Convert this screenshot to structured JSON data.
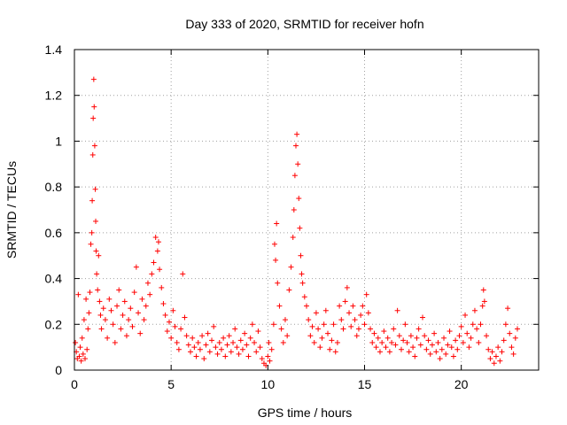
{
  "chart_data": {
    "type": "scatter",
    "title": "Day 333 of 2020, SRMTID for receiver hofn",
    "xlabel": "GPS time / hours",
    "ylabel": "SRMTID / TECUs",
    "xlim": [
      0,
      24
    ],
    "ylim": [
      0,
      1.4
    ],
    "x_ticks": [
      0,
      5,
      10,
      15,
      20
    ],
    "x_tick_labels": [
      "0",
      "5",
      "10",
      "15",
      "20"
    ],
    "y_ticks": [
      0,
      0.2,
      0.4,
      0.6,
      0.8,
      1.0,
      1.2,
      1.4
    ],
    "y_tick_labels": [
      "0",
      "0.2",
      "0.4",
      "0.6",
      "0.8",
      "1",
      "1.2",
      "1.4"
    ],
    "grid": true,
    "marker": "+",
    "color": "#ff0000",
    "series": [
      {
        "name": "SRMTID",
        "points": [
          [
            0.05,
            0.12
          ],
          [
            0.1,
            0.08
          ],
          [
            0.15,
            0.05
          ],
          [
            0.2,
            0.33
          ],
          [
            0.25,
            0.06
          ],
          [
            0.3,
            0.1
          ],
          [
            0.35,
            0.04
          ],
          [
            0.4,
            0.14
          ],
          [
            0.45,
            0.07
          ],
          [
            0.5,
            0.22
          ],
          [
            0.55,
            0.05
          ],
          [
            0.6,
            0.31
          ],
          [
            0.65,
            0.09
          ],
          [
            0.7,
            0.18
          ],
          [
            0.75,
            0.25
          ],
          [
            0.8,
            0.34
          ],
          [
            0.85,
            0.55
          ],
          [
            0.9,
            0.6
          ],
          [
            0.92,
            0.74
          ],
          [
            0.95,
            0.94
          ],
          [
            0.97,
            1.1
          ],
          [
            1.0,
            1.27
          ],
          [
            1.02,
            1.15
          ],
          [
            1.05,
            0.98
          ],
          [
            1.08,
            0.79
          ],
          [
            1.1,
            0.65
          ],
          [
            1.12,
            0.52
          ],
          [
            1.15,
            0.42
          ],
          [
            1.2,
            0.35
          ],
          [
            1.25,
            0.5
          ],
          [
            1.3,
            0.3
          ],
          [
            1.35,
            0.24
          ],
          [
            1.4,
            0.18
          ],
          [
            1.5,
            0.27
          ],
          [
            1.6,
            0.22
          ],
          [
            1.7,
            0.14
          ],
          [
            1.8,
            0.31
          ],
          [
            1.9,
            0.26
          ],
          [
            2.0,
            0.2
          ],
          [
            2.1,
            0.12
          ],
          [
            2.2,
            0.28
          ],
          [
            2.3,
            0.35
          ],
          [
            2.4,
            0.18
          ],
          [
            2.5,
            0.24
          ],
          [
            2.6,
            0.3
          ],
          [
            2.7,
            0.15
          ],
          [
            2.8,
            0.22
          ],
          [
            2.9,
            0.27
          ],
          [
            3.0,
            0.19
          ],
          [
            3.1,
            0.34
          ],
          [
            3.2,
            0.45
          ],
          [
            3.3,
            0.25
          ],
          [
            3.4,
            0.16
          ],
          [
            3.5,
            0.31
          ],
          [
            3.6,
            0.22
          ],
          [
            3.7,
            0.28
          ],
          [
            3.8,
            0.38
          ],
          [
            3.9,
            0.33
          ],
          [
            4.0,
            0.42
          ],
          [
            4.1,
            0.47
          ],
          [
            4.2,
            0.58
          ],
          [
            4.3,
            0.52
          ],
          [
            4.35,
            0.56
          ],
          [
            4.4,
            0.44
          ],
          [
            4.5,
            0.36
          ],
          [
            4.6,
            0.29
          ],
          [
            4.7,
            0.24
          ],
          [
            4.8,
            0.17
          ],
          [
            4.9,
            0.21
          ],
          [
            5.0,
            0.14
          ],
          [
            5.1,
            0.26
          ],
          [
            5.2,
            0.19
          ],
          [
            5.3,
            0.12
          ],
          [
            5.4,
            0.09
          ],
          [
            5.5,
            0.18
          ],
          [
            5.6,
            0.42
          ],
          [
            5.7,
            0.23
          ],
          [
            5.8,
            0.15
          ],
          [
            5.9,
            0.11
          ],
          [
            6.0,
            0.08
          ],
          [
            6.1,
            0.14
          ],
          [
            6.2,
            0.1
          ],
          [
            6.3,
            0.06
          ],
          [
            6.4,
            0.12
          ],
          [
            6.5,
            0.09
          ],
          [
            6.6,
            0.15
          ],
          [
            6.7,
            0.05
          ],
          [
            6.8,
            0.11
          ],
          [
            6.9,
            0.16
          ],
          [
            7.0,
            0.08
          ],
          [
            7.1,
            0.13
          ],
          [
            7.2,
            0.19
          ],
          [
            7.3,
            0.1
          ],
          [
            7.4,
            0.07
          ],
          [
            7.5,
            0.12
          ],
          [
            7.6,
            0.09
          ],
          [
            7.7,
            0.14
          ],
          [
            7.8,
            0.06
          ],
          [
            7.9,
            0.11
          ],
          [
            8.0,
            0.15
          ],
          [
            8.1,
            0.08
          ],
          [
            8.2,
            0.12
          ],
          [
            8.3,
            0.18
          ],
          [
            8.4,
            0.1
          ],
          [
            8.5,
            0.07
          ],
          [
            8.6,
            0.13
          ],
          [
            8.7,
            0.09
          ],
          [
            8.8,
            0.16
          ],
          [
            8.9,
            0.11
          ],
          [
            9.0,
            0.06
          ],
          [
            9.1,
            0.14
          ],
          [
            9.2,
            0.2
          ],
          [
            9.3,
            0.12
          ],
          [
            9.4,
            0.08
          ],
          [
            9.5,
            0.17
          ],
          [
            9.6,
            0.1
          ],
          [
            9.7,
            0.05
          ],
          [
            9.8,
            0.03
          ],
          [
            9.9,
            0.02
          ],
          [
            10.0,
            0.06
          ],
          [
            10.05,
            0.12
          ],
          [
            10.1,
            0.04
          ],
          [
            10.2,
            0.09
          ],
          [
            10.3,
            0.2
          ],
          [
            10.35,
            0.55
          ],
          [
            10.4,
            0.48
          ],
          [
            10.45,
            0.64
          ],
          [
            10.5,
            0.38
          ],
          [
            10.6,
            0.28
          ],
          [
            10.7,
            0.18
          ],
          [
            10.8,
            0.12
          ],
          [
            10.9,
            0.22
          ],
          [
            11.0,
            0.15
          ],
          [
            11.1,
            0.35
          ],
          [
            11.2,
            0.45
          ],
          [
            11.3,
            0.58
          ],
          [
            11.35,
            0.7
          ],
          [
            11.4,
            0.85
          ],
          [
            11.45,
            0.98
          ],
          [
            11.5,
            1.03
          ],
          [
            11.55,
            0.9
          ],
          [
            11.6,
            0.75
          ],
          [
            11.65,
            0.62
          ],
          [
            11.7,
            0.5
          ],
          [
            11.75,
            0.42
          ],
          [
            11.8,
            0.38
          ],
          [
            11.9,
            0.32
          ],
          [
            12.0,
            0.28
          ],
          [
            12.1,
            0.22
          ],
          [
            12.2,
            0.15
          ],
          [
            12.3,
            0.19
          ],
          [
            12.4,
            0.12
          ],
          [
            12.5,
            0.25
          ],
          [
            12.6,
            0.18
          ],
          [
            12.7,
            0.1
          ],
          [
            12.8,
            0.14
          ],
          [
            12.9,
            0.2
          ],
          [
            13.0,
            0.26
          ],
          [
            13.1,
            0.16
          ],
          [
            13.2,
            0.09
          ],
          [
            13.3,
            0.13
          ],
          [
            13.4,
            0.2
          ],
          [
            13.5,
            0.08
          ],
          [
            13.6,
            0.12
          ],
          [
            13.7,
            0.28
          ],
          [
            13.8,
            0.22
          ],
          [
            13.9,
            0.18
          ],
          [
            14.0,
            0.3
          ],
          [
            14.1,
            0.36
          ],
          [
            14.2,
            0.25
          ],
          [
            14.3,
            0.19
          ],
          [
            14.4,
            0.28
          ],
          [
            14.5,
            0.22
          ],
          [
            14.6,
            0.15
          ],
          [
            14.7,
            0.18
          ],
          [
            14.8,
            0.24
          ],
          [
            14.9,
            0.28
          ],
          [
            15.0,
            0.2
          ],
          [
            15.1,
            0.33
          ],
          [
            15.2,
            0.25
          ],
          [
            15.3,
            0.18
          ],
          [
            15.4,
            0.12
          ],
          [
            15.5,
            0.16
          ],
          [
            15.6,
            0.1
          ],
          [
            15.7,
            0.14
          ],
          [
            15.8,
            0.08
          ],
          [
            15.9,
            0.12
          ],
          [
            16.0,
            0.17
          ],
          [
            16.1,
            0.1
          ],
          [
            16.2,
            0.14
          ],
          [
            16.3,
            0.08
          ],
          [
            16.4,
            0.12
          ],
          [
            16.5,
            0.18
          ],
          [
            16.6,
            0.11
          ],
          [
            16.7,
            0.26
          ],
          [
            16.8,
            0.15
          ],
          [
            16.9,
            0.09
          ],
          [
            17.0,
            0.13
          ],
          [
            17.1,
            0.2
          ],
          [
            17.2,
            0.12
          ],
          [
            17.3,
            0.08
          ],
          [
            17.4,
            0.15
          ],
          [
            17.5,
            0.1
          ],
          [
            17.6,
            0.06
          ],
          [
            17.7,
            0.14
          ],
          [
            17.8,
            0.18
          ],
          [
            17.9,
            0.11
          ],
          [
            18.0,
            0.23
          ],
          [
            18.1,
            0.15
          ],
          [
            18.2,
            0.09
          ],
          [
            18.3,
            0.13
          ],
          [
            18.4,
            0.07
          ],
          [
            18.5,
            0.11
          ],
          [
            18.6,
            0.16
          ],
          [
            18.7,
            0.08
          ],
          [
            18.8,
            0.12
          ],
          [
            18.9,
            0.05
          ],
          [
            19.0,
            0.09
          ],
          [
            19.1,
            0.14
          ],
          [
            19.2,
            0.07
          ],
          [
            19.3,
            0.11
          ],
          [
            19.4,
            0.17
          ],
          [
            19.5,
            0.1
          ],
          [
            19.6,
            0.06
          ],
          [
            19.7,
            0.13
          ],
          [
            19.8,
            0.09
          ],
          [
            19.9,
            0.15
          ],
          [
            20.0,
            0.19
          ],
          [
            20.1,
            0.12
          ],
          [
            20.2,
            0.24
          ],
          [
            20.3,
            0.16
          ],
          [
            20.4,
            0.1
          ],
          [
            20.5,
            0.14
          ],
          [
            20.6,
            0.2
          ],
          [
            20.7,
            0.26
          ],
          [
            20.8,
            0.18
          ],
          [
            20.9,
            0.12
          ],
          [
            21.0,
            0.2
          ],
          [
            21.1,
            0.28
          ],
          [
            21.15,
            0.35
          ],
          [
            21.2,
            0.3
          ],
          [
            21.3,
            0.15
          ],
          [
            21.4,
            0.09
          ],
          [
            21.5,
            0.05
          ],
          [
            21.6,
            0.08
          ],
          [
            21.7,
            0.03
          ],
          [
            21.8,
            0.06
          ],
          [
            21.9,
            0.1
          ],
          [
            22.0,
            0.04
          ],
          [
            22.1,
            0.08
          ],
          [
            22.2,
            0.13
          ],
          [
            22.3,
            0.2
          ],
          [
            22.4,
            0.27
          ],
          [
            22.5,
            0.16
          ],
          [
            22.6,
            0.1
          ],
          [
            22.7,
            0.07
          ],
          [
            22.8,
            0.14
          ],
          [
            22.9,
            0.18
          ]
        ]
      }
    ]
  }
}
